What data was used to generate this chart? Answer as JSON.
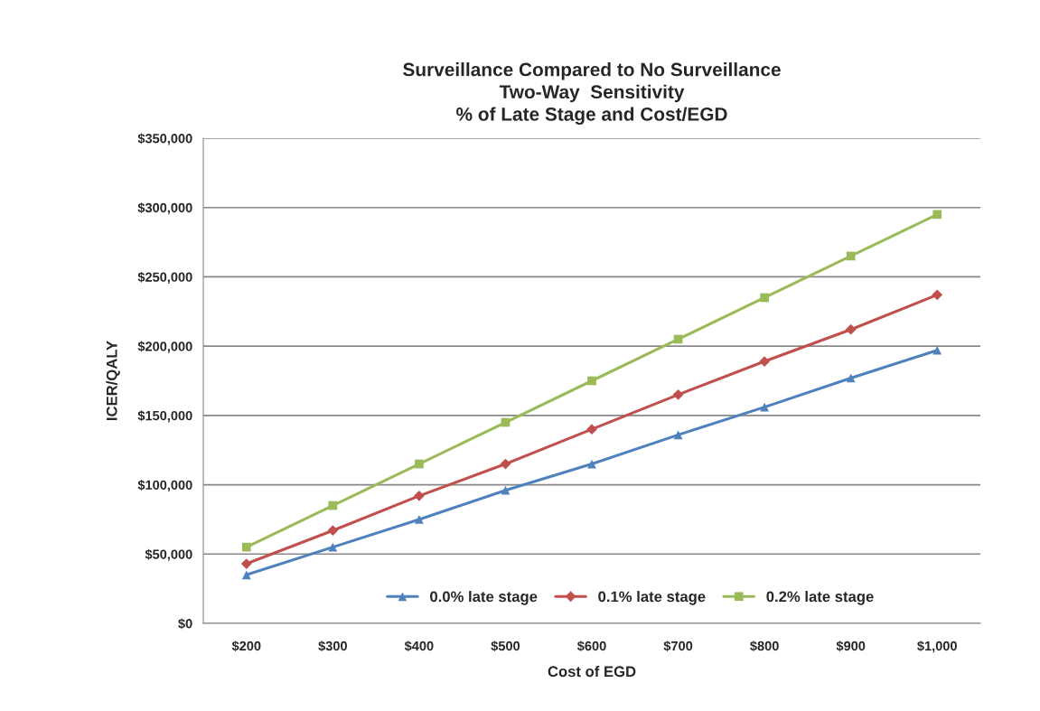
{
  "chart_data": {
    "type": "line",
    "title": "Surveillance Compared to No Surveillance\nTwo-Way  Sensitivity\n% of Late Stage and Cost/EGD",
    "xlabel": "Cost of EGD",
    "ylabel": "ICER/QALY",
    "categories": [
      "$200",
      "$300",
      "$400",
      "$500",
      "$600",
      "$700",
      "$800",
      "$900",
      "$1,000"
    ],
    "series": [
      {
        "name": "0.0% late stage",
        "color": "#4f81bd",
        "marker": "triangle",
        "values": [
          35000,
          55000,
          75000,
          96000,
          115000,
          136000,
          156000,
          177000,
          197000
        ]
      },
      {
        "name": "0.1% late stage",
        "color": "#c0504d",
        "marker": "diamond",
        "values": [
          43000,
          67000,
          92000,
          115000,
          140000,
          165000,
          189000,
          212000,
          237000
        ]
      },
      {
        "name": "0.2% late stage",
        "color": "#9bbb59",
        "marker": "square",
        "values": [
          55000,
          85000,
          115000,
          145000,
          175000,
          205000,
          235000,
          265000,
          295000
        ]
      }
    ],
    "ylim": [
      0,
      350000
    ],
    "yticks": [
      {
        "value": 0,
        "label": "$0"
      },
      {
        "value": 50000,
        "label": "$50,000"
      },
      {
        "value": 100000,
        "label": "$100,000"
      },
      {
        "value": 150000,
        "label": "$150,000"
      },
      {
        "value": 200000,
        "label": "$200,000"
      },
      {
        "value": 250000,
        "label": "$250,000"
      },
      {
        "value": 300000,
        "label": "$300,000"
      },
      {
        "value": 350000,
        "label": "$350,000"
      }
    ],
    "grid": "y",
    "legend": "bottom",
    "line_style": "solid"
  }
}
